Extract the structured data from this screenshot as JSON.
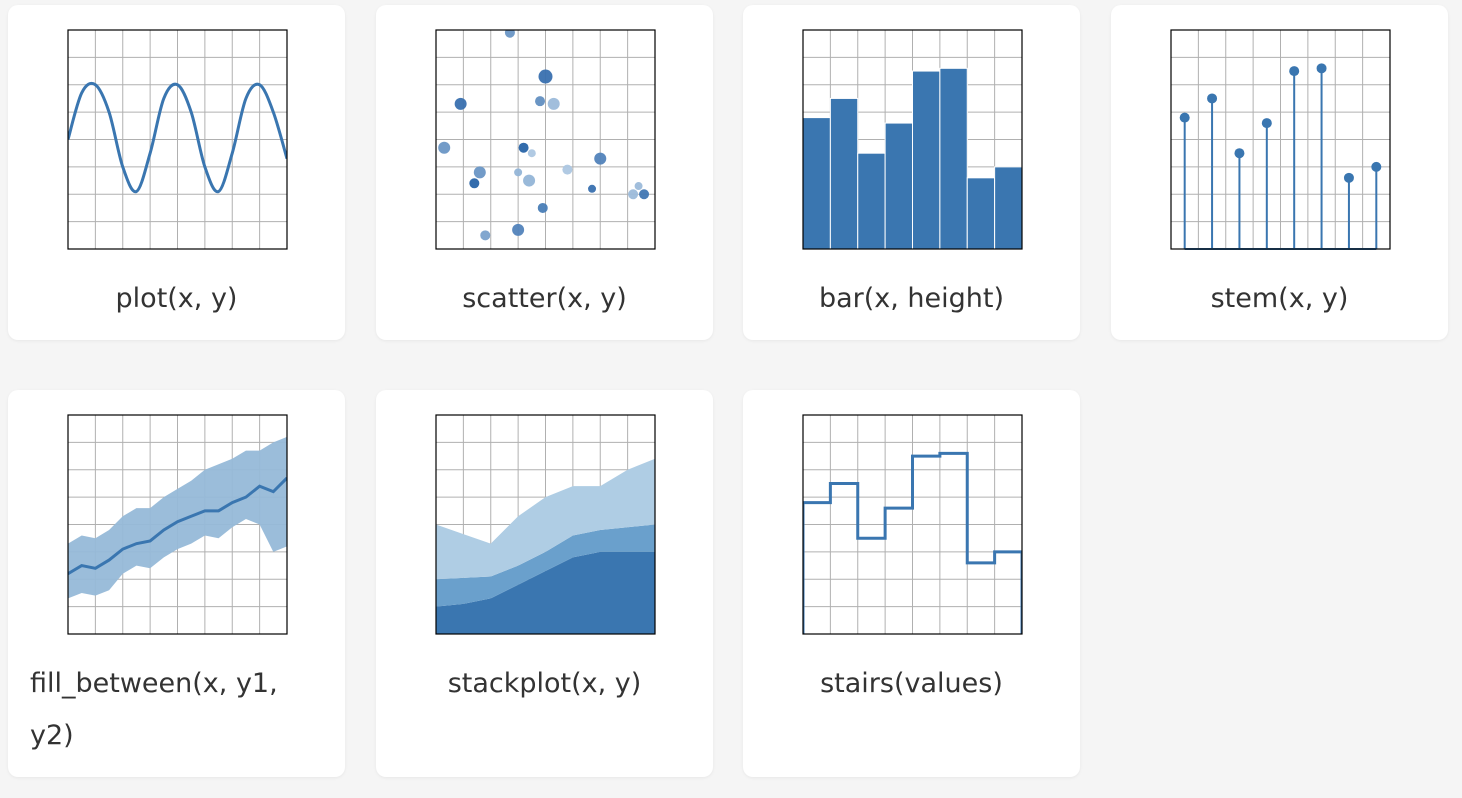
{
  "colors": {
    "line": "#3a76b0",
    "grid": "#b0b0b0",
    "frame": "#000000",
    "stack_dark": "#3a76b0",
    "stack_mid": "#6aa0cc",
    "stack_light": "#afcde4",
    "band": "#96b9d8"
  },
  "cards": [
    {
      "id": "plot",
      "label": "plot(x, y)",
      "chart_data": {
        "type": "line",
        "x": [
          0,
          0.5,
          1,
          1.5,
          2,
          2.5,
          3,
          3.5,
          4,
          4.5,
          5,
          5.5,
          6,
          6.5,
          7,
          7.5,
          8
        ],
        "y": [
          4,
          5.7,
          6,
          5,
          3,
          2.1,
          3.5,
          5.5,
          6,
          5,
          3,
          2.1,
          3.5,
          5.5,
          6,
          5,
          3.3
        ],
        "xlim": [
          0,
          8
        ],
        "ylim": [
          0,
          8
        ]
      }
    },
    {
      "id": "scatter",
      "label": "scatter(x, y)",
      "chart_data": {
        "type": "scatter",
        "x": [
          2.7,
          4.0,
          0.9,
          3.8,
          4.3,
          0.3,
          3.2,
          6.0,
          1.6,
          3.0,
          3.4,
          3.5,
          4.8,
          5.7,
          1.4,
          1.8,
          3.9,
          3.0,
          7.4,
          7.6,
          7.2
        ],
        "y": [
          7.9,
          6.3,
          5.3,
          5.4,
          5.3,
          3.7,
          3.7,
          3.3,
          2.8,
          2.8,
          2.5,
          3.5,
          2.9,
          2.2,
          2.4,
          0.5,
          1.5,
          0.7,
          2.3,
          2.0,
          2.0
        ],
        "sizes": [
          5,
          7,
          6,
          5,
          6,
          6,
          5,
          6,
          6,
          4,
          6,
          4,
          5,
          4,
          5,
          5,
          5,
          6,
          4,
          5,
          5
        ],
        "shades": [
          0.6,
          0.9,
          0.9,
          0.65,
          0.3,
          0.6,
          1.0,
          0.75,
          0.6,
          0.35,
          0.35,
          0.2,
          0.2,
          0.9,
          1.0,
          0.5,
          0.8,
          0.75,
          0.3,
          0.85,
          0.3
        ],
        "xlim": [
          0,
          8
        ],
        "ylim": [
          0,
          8
        ]
      }
    },
    {
      "id": "bar",
      "label": "bar(x, height)",
      "chart_data": {
        "type": "bar",
        "x": [
          0.5,
          1.5,
          2.5,
          3.5,
          4.5,
          5.5,
          6.5,
          7.5
        ],
        "values": [
          4.8,
          5.5,
          3.5,
          4.6,
          6.5,
          6.6,
          2.6,
          3.0
        ],
        "xlim": [
          0,
          8
        ],
        "ylim": [
          0,
          8
        ]
      }
    },
    {
      "id": "stem",
      "label": "stem(x, y)",
      "chart_data": {
        "type": "stem",
        "x": [
          0.5,
          1.5,
          2.5,
          3.5,
          4.5,
          5.5,
          6.5,
          7.5
        ],
        "values": [
          4.8,
          5.5,
          3.5,
          4.6,
          6.5,
          6.6,
          2.6,
          3.0
        ],
        "xlim": [
          0,
          8
        ],
        "ylim": [
          0,
          8
        ]
      }
    },
    {
      "id": "fill_between",
      "label": "fill_between(x, y1, y2)",
      "chart_data": {
        "type": "area",
        "x": [
          0,
          0.5,
          1,
          1.5,
          2,
          2.5,
          3,
          3.5,
          4,
          4.5,
          5,
          5.5,
          6,
          6.5,
          7,
          7.5,
          8
        ],
        "y1": [
          1.3,
          1.5,
          1.4,
          1.6,
          2.2,
          2.5,
          2.4,
          2.8,
          3.1,
          3.3,
          3.6,
          3.5,
          3.9,
          4.2,
          4.0,
          3.0,
          3.2
        ],
        "y2": [
          3.3,
          3.6,
          3.5,
          3.8,
          4.3,
          4.6,
          4.6,
          5.0,
          5.3,
          5.6,
          6.0,
          6.2,
          6.4,
          6.7,
          6.7,
          7.0,
          7.2
        ],
        "line": [
          2.2,
          2.5,
          2.4,
          2.7,
          3.1,
          3.3,
          3.4,
          3.8,
          4.1,
          4.3,
          4.5,
          4.5,
          4.8,
          5.0,
          5.4,
          5.2,
          5.7
        ],
        "xlim": [
          0,
          8
        ],
        "ylim": [
          0,
          8
        ]
      }
    },
    {
      "id": "stackplot",
      "label": "stackplot(x, y)",
      "chart_data": {
        "type": "area",
        "stacked": true,
        "x": [
          0,
          1,
          2,
          3,
          4,
          5,
          6,
          7,
          8
        ],
        "series": [
          {
            "values": [
              1.0,
              1.1,
              1.3,
              1.8,
              2.3,
              2.8,
              3.0,
              3.0,
              3.0
            ]
          },
          {
            "values": [
              1.0,
              0.95,
              0.8,
              0.7,
              0.7,
              0.8,
              0.8,
              0.9,
              1.0
            ]
          },
          {
            "values": [
              2.0,
              1.6,
              1.2,
              1.8,
              2.0,
              1.8,
              1.6,
              2.1,
              2.4
            ]
          }
        ],
        "xlim": [
          0,
          8
        ],
        "ylim": [
          0,
          8
        ]
      }
    },
    {
      "id": "stairs",
      "label": "stairs(values)",
      "chart_data": {
        "type": "line",
        "drawstyle": "steps",
        "edges": [
          0,
          1,
          2,
          3,
          4,
          5,
          6,
          7,
          8
        ],
        "values": [
          4.8,
          5.5,
          3.5,
          4.6,
          6.5,
          6.6,
          2.6,
          3.0
        ],
        "xlim": [
          0,
          8
        ],
        "ylim": [
          0,
          8
        ]
      }
    }
  ]
}
